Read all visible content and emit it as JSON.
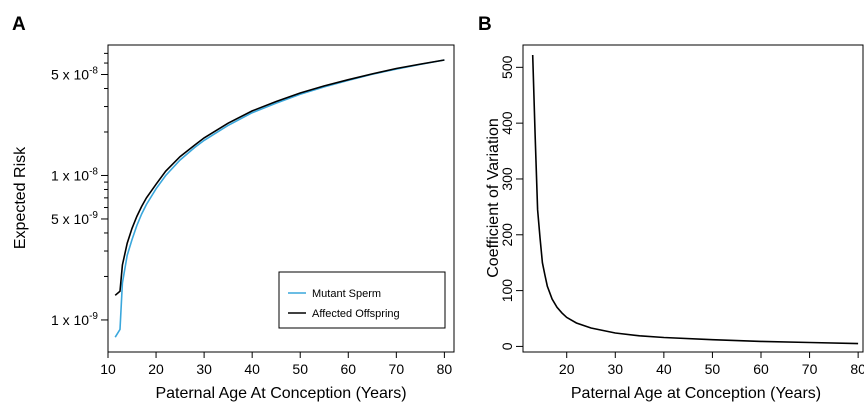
{
  "chart_data": [
    {
      "panel_label": "A",
      "type": "line",
      "xlabel": "Paternal Age At Conception (Years)",
      "ylabel": "Expected Risk",
      "y_scale": "log",
      "xlim": [
        10,
        82
      ],
      "ylim": [
        6e-10,
        8e-08
      ],
      "x_ticks": [
        10,
        20,
        30,
        40,
        50,
        60,
        70,
        80
      ],
      "y_ticks": [
        {
          "value": 1e-09,
          "label": "1 x 10",
          "exp": "-9"
        },
        {
          "value": 5e-09,
          "label": "5 x 10",
          "exp": "-9"
        },
        {
          "value": 1e-08,
          "label": "1 x 10",
          "exp": "-8"
        },
        {
          "value": 5e-08,
          "label": "5 x 10",
          "exp": "-8"
        }
      ],
      "minor_y_ticks": [
        2e-09,
        3e-09,
        4e-09,
        6e-09,
        7e-09,
        8e-09,
        9e-09,
        2e-08,
        3e-08,
        4e-08,
        6e-08,
        7e-08
      ],
      "grid": false,
      "legend_position": "bottom-right",
      "series": [
        {
          "name": "Mutant Sperm",
          "color": "#3aa7dc",
          "x": [
            11.5,
            12.5,
            13,
            14,
            15,
            16,
            17,
            18,
            20,
            22,
            25,
            28,
            30,
            35,
            40,
            45,
            50,
            55,
            60,
            65,
            70,
            75,
            80
          ],
          "y": [
            7.6e-10,
            8.6e-10,
            1.8e-09,
            2.8e-09,
            3.6e-09,
            4.5e-09,
            5.4e-09,
            6.3e-09,
            8.1e-09,
            1e-08,
            1.28e-08,
            1.56e-08,
            1.75e-08,
            2.22e-08,
            2.72e-08,
            3.17e-08,
            3.65e-08,
            4.11e-08,
            4.56e-08,
            5.02e-08,
            5.45e-08,
            5.87e-08,
            6.3e-08
          ]
        },
        {
          "name": "Affected Offspring",
          "color": "#000000",
          "x": [
            11.5,
            12.5,
            13,
            14,
            15,
            16,
            17,
            18,
            20,
            22,
            25,
            28,
            30,
            35,
            40,
            45,
            50,
            55,
            60,
            65,
            70,
            75,
            80
          ],
          "y": [
            1.48e-09,
            1.58e-09,
            2.4e-09,
            3.4e-09,
            4.3e-09,
            5.2e-09,
            6.1e-09,
            7e-09,
            8.7e-09,
            1.07e-08,
            1.35e-08,
            1.62e-08,
            1.82e-08,
            2.3e-08,
            2.8e-08,
            3.25e-08,
            3.72e-08,
            4.17e-08,
            4.6e-08,
            5.05e-08,
            5.5e-08,
            5.9e-08,
            6.3e-08
          ]
        }
      ]
    },
    {
      "panel_label": "B",
      "type": "line",
      "xlabel": "Paternal Age at Conception (Years)",
      "ylabel": "Coefficient of Variation",
      "y_scale": "linear",
      "xlim": [
        11,
        81
      ],
      "ylim": [
        -10,
        540
      ],
      "x_ticks": [
        20,
        30,
        40,
        50,
        60,
        70,
        80
      ],
      "y_ticks": [
        0,
        100,
        200,
        300,
        400,
        500
      ],
      "grid": false,
      "series": [
        {
          "color": "#000000",
          "x": [
            13,
            13.5,
            14,
            14.5,
            15,
            15.5,
            16,
            17,
            18,
            19,
            20,
            22,
            25,
            30,
            35,
            40,
            50,
            60,
            70,
            80
          ],
          "y": [
            522,
            380,
            245,
            195,
            150,
            128,
            108,
            85,
            70,
            60,
            52,
            42,
            33,
            24,
            19,
            16,
            12,
            9,
            7,
            5
          ]
        }
      ]
    }
  ]
}
